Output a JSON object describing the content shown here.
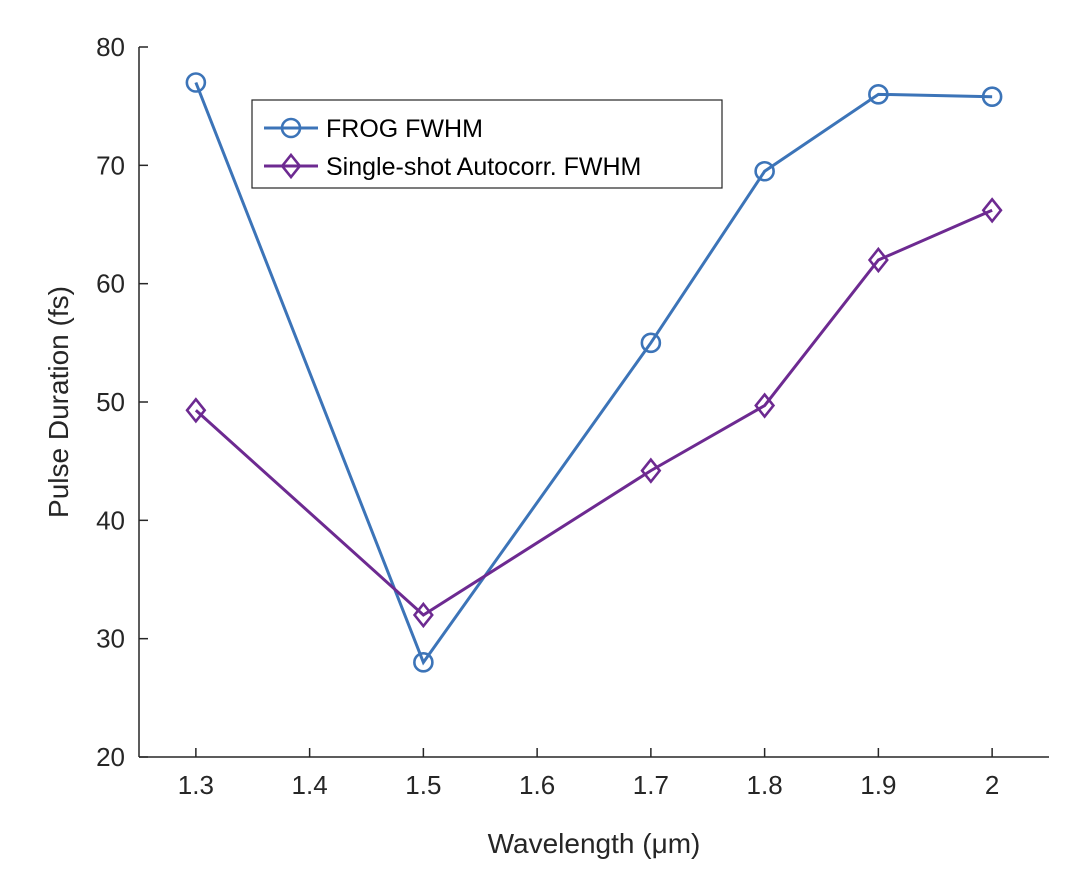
{
  "chart_data": {
    "type": "line",
    "xlabel": "Wavelength (μm)",
    "ylabel": "Pulse Duration (fs)",
    "xlim": [
      1.25,
      2.05
    ],
    "ylim": [
      20,
      80
    ],
    "xticks": [
      1.3,
      1.4,
      1.5,
      1.6,
      1.7,
      1.8,
      1.9,
      2
    ],
    "xtick_labels": [
      "1.3",
      "1.4",
      "1.5",
      "1.6",
      "1.7",
      "1.8",
      "1.9",
      "2"
    ],
    "yticks": [
      20,
      30,
      40,
      50,
      60,
      70,
      80
    ],
    "ytick_labels": [
      "20",
      "30",
      "40",
      "50",
      "60",
      "70",
      "80"
    ],
    "grid": false,
    "legend_position": "top-left",
    "series": [
      {
        "name": "FROG FWHM",
        "marker": "circle",
        "color": "#3c74b8",
        "x": [
          1.3,
          1.5,
          1.7,
          1.8,
          1.9,
          2.0
        ],
        "y": [
          77,
          28,
          55,
          69.5,
          76,
          75.8
        ]
      },
      {
        "name": "Single-shot Autocorr. FWHM",
        "marker": "diamond",
        "color": "#6d2a91",
        "x": [
          1.3,
          1.5,
          1.7,
          1.8,
          1.9,
          2.0
        ],
        "y": [
          49.3,
          32,
          44.2,
          49.7,
          62,
          66.2
        ]
      }
    ]
  }
}
